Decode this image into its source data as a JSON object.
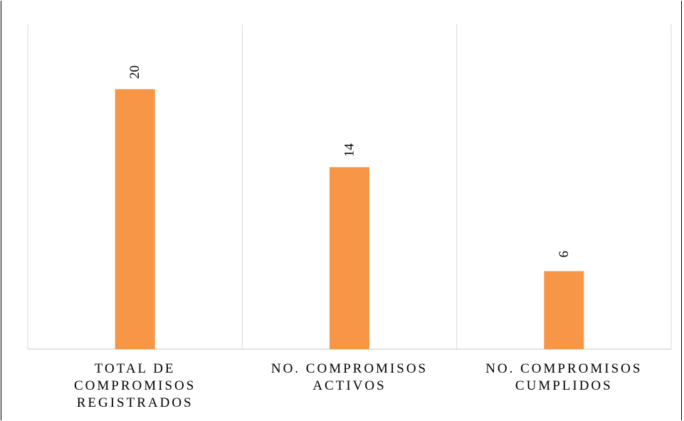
{
  "chart_data": {
    "type": "bar",
    "categories": [
      "TOTAL DE COMPROMISOS REGISTRADOS",
      "NO. COMPROMISOS ACTIVOS",
      "NO. COMPROMISOS CUMPLIDOS"
    ],
    "category_lines": [
      [
        "TOTAL DE",
        "COMPROMISOS",
        "REGISTRADOS"
      ],
      [
        "NO. COMPROMISOS",
        "ACTIVOS"
      ],
      [
        "NO. COMPROMISOS",
        "CUMPLIDOS"
      ]
    ],
    "values": [
      20,
      14,
      6
    ],
    "data_labels": [
      "20",
      "14",
      "6"
    ],
    "title": "",
    "xlabel": "",
    "ylabel": "",
    "ylim": [
      0,
      25
    ],
    "grid": "vertical category separators",
    "legend": "none",
    "bar_color": "#F79646",
    "gridline_color": "#D9D9D9"
  }
}
